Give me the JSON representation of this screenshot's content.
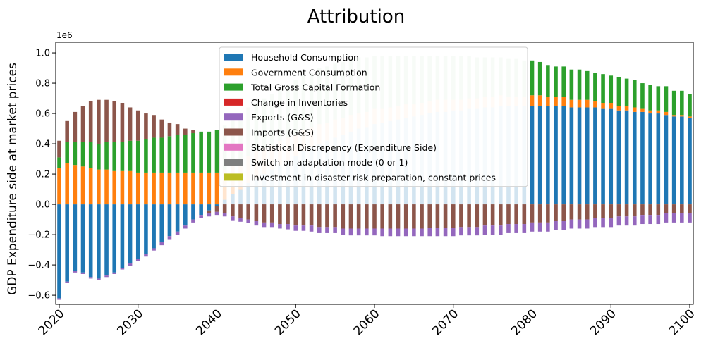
{
  "chart_data": {
    "type": "bar",
    "stacked": true,
    "title": "Attribution",
    "ylabel": "GDP Expenditure side at market prices",
    "xlabel": "",
    "y_offset_label": "1e6",
    "ylim": [
      -0.66,
      1.07
    ],
    "yticks": [
      -0.6,
      -0.4,
      -0.2,
      0.0,
      0.2,
      0.4,
      0.6,
      0.8,
      1.0
    ],
    "ytick_labels": [
      "−0.6",
      "−0.4",
      "−0.2",
      "0.0",
      "0.2",
      "0.4",
      "0.6",
      "0.8",
      "1.0"
    ],
    "xticks": [
      2020,
      2030,
      2040,
      2050,
      2060,
      2070,
      2080,
      2090,
      2100
    ],
    "xtick_labels": [
      "2020",
      "2030",
      "2040",
      "2050",
      "2060",
      "2070",
      "2080",
      "2090",
      "2100"
    ],
    "xtick_rotation": 45,
    "x_start": 2020,
    "x_end": 2100,
    "faded_range": [
      2041,
      2079
    ],
    "legend_placement": "upper-center",
    "grid": false,
    "legend": [
      {
        "name": "Household Consumption",
        "color": "#1f77b4"
      },
      {
        "name": "Government Consumption",
        "color": "#ff7f0e"
      },
      {
        "name": "Total Gross Capital Formation",
        "color": "#2ca02c"
      },
      {
        "name": "Change in Inventories",
        "color": "#d62728"
      },
      {
        "name": "Exports (G&S)",
        "color": "#9467bd"
      },
      {
        "name": "Imports (G&S)",
        "color": "#8c564b"
      },
      {
        "name": "Statistical Discrepency (Expenditure Side)",
        "color": "#e377c2"
      },
      {
        "name": "Switch on adaptation mode (0 or 1)",
        "color": "#7f7f7f"
      },
      {
        "name": "Investment in disaster risk preparation, constant prices",
        "color": "#bcbd22"
      }
    ],
    "bars": [
      {
        "year": 2020,
        "hh": -0.62,
        "gov": 0.24,
        "gcf": 0.07,
        "exp": -0.01,
        "imp": 0.11
      },
      {
        "year": 2021,
        "hh": -0.51,
        "gov": 0.27,
        "gcf": 0.14,
        "exp": -0.01,
        "imp": 0.14
      },
      {
        "year": 2022,
        "hh": -0.44,
        "gov": 0.26,
        "gcf": 0.15,
        "exp": -0.01,
        "imp": 0.2
      },
      {
        "year": 2023,
        "hh": -0.45,
        "gov": 0.25,
        "gcf": 0.16,
        "exp": -0.01,
        "imp": 0.24
      },
      {
        "year": 2024,
        "hh": -0.48,
        "gov": 0.24,
        "gcf": 0.17,
        "exp": -0.01,
        "imp": 0.27
      },
      {
        "year": 2025,
        "hh": -0.49,
        "gov": 0.23,
        "gcf": 0.17,
        "exp": -0.01,
        "imp": 0.29
      },
      {
        "year": 2026,
        "hh": -0.47,
        "gov": 0.23,
        "gcf": 0.18,
        "exp": -0.01,
        "imp": 0.28
      },
      {
        "year": 2027,
        "hh": -0.45,
        "gov": 0.22,
        "gcf": 0.19,
        "exp": -0.01,
        "imp": 0.27
      },
      {
        "year": 2028,
        "hh": -0.42,
        "gov": 0.22,
        "gcf": 0.19,
        "exp": -0.01,
        "imp": 0.26
      },
      {
        "year": 2029,
        "hh": -0.39,
        "gov": 0.22,
        "gcf": 0.2,
        "exp": -0.015,
        "imp": 0.22
      },
      {
        "year": 2030,
        "hh": -0.36,
        "gov": 0.21,
        "gcf": 0.21,
        "exp": -0.015,
        "imp": 0.2
      },
      {
        "year": 2031,
        "hh": -0.33,
        "gov": 0.21,
        "gcf": 0.22,
        "exp": -0.015,
        "imp": 0.17
      },
      {
        "year": 2032,
        "hh": -0.29,
        "gov": 0.21,
        "gcf": 0.23,
        "exp": -0.015,
        "imp": 0.15
      },
      {
        "year": 2033,
        "hh": -0.25,
        "gov": 0.21,
        "gcf": 0.23,
        "exp": -0.02,
        "imp": 0.12
      },
      {
        "year": 2034,
        "hh": -0.21,
        "gov": 0.21,
        "gcf": 0.24,
        "exp": -0.02,
        "imp": 0.09
      },
      {
        "year": 2035,
        "hh": -0.18,
        "gov": 0.21,
        "gcf": 0.25,
        "exp": -0.02,
        "imp": 0.07
      },
      {
        "year": 2036,
        "hh": -0.14,
        "gov": 0.21,
        "gcf": 0.25,
        "exp": -0.02,
        "imp": 0.04
      },
      {
        "year": 2037,
        "hh": -0.1,
        "gov": 0.21,
        "gcf": 0.26,
        "exp": -0.02,
        "imp": 0.02
      },
      {
        "year": 2038,
        "hh": -0.07,
        "gov": 0.21,
        "gcf": 0.27,
        "exp": -0.02,
        "imp": 0.0
      },
      {
        "year": 2039,
        "hh": -0.04,
        "gov": 0.21,
        "gcf": 0.27,
        "exp": -0.02,
        "imp": -0.02
      },
      {
        "year": 2040,
        "hh": -0.01,
        "gov": 0.21,
        "gcf": 0.28,
        "exp": -0.02,
        "imp": -0.04
      },
      {
        "year": 2041,
        "hh": 0.03,
        "gov": 0.2,
        "gcf": 0.29,
        "exp": -0.02,
        "imp": -0.06
      },
      {
        "year": 2042,
        "hh": 0.07,
        "gov": 0.2,
        "gcf": 0.3,
        "exp": -0.025,
        "imp": -0.08
      },
      {
        "year": 2043,
        "hh": 0.1,
        "gov": 0.19,
        "gcf": 0.31,
        "exp": -0.025,
        "imp": -0.09
      },
      {
        "year": 2044,
        "hh": 0.14,
        "gov": 0.18,
        "gcf": 0.32,
        "exp": -0.025,
        "imp": -0.1
      },
      {
        "year": 2045,
        "hh": 0.17,
        "gov": 0.18,
        "gcf": 0.32,
        "exp": -0.03,
        "imp": -0.11
      },
      {
        "year": 2046,
        "hh": 0.2,
        "gov": 0.17,
        "gcf": 0.33,
        "exp": -0.03,
        "imp": -0.12
      },
      {
        "year": 2047,
        "hh": 0.23,
        "gov": 0.16,
        "gcf": 0.34,
        "exp": -0.03,
        "imp": -0.12
      },
      {
        "year": 2048,
        "hh": 0.26,
        "gov": 0.16,
        "gcf": 0.34,
        "exp": -0.03,
        "imp": -0.13
      },
      {
        "year": 2049,
        "hh": 0.29,
        "gov": 0.15,
        "gcf": 0.35,
        "exp": -0.035,
        "imp": -0.13
      },
      {
        "year": 2050,
        "hh": 0.32,
        "gov": 0.14,
        "gcf": 0.36,
        "exp": -0.035,
        "imp": -0.14
      },
      {
        "year": 2051,
        "hh": 0.35,
        "gov": 0.14,
        "gcf": 0.36,
        "exp": -0.035,
        "imp": -0.14
      },
      {
        "year": 2052,
        "hh": 0.38,
        "gov": 0.13,
        "gcf": 0.36,
        "exp": -0.04,
        "imp": -0.14
      },
      {
        "year": 2053,
        "hh": 0.4,
        "gov": 0.13,
        "gcf": 0.37,
        "exp": -0.04,
        "imp": -0.15
      },
      {
        "year": 2054,
        "hh": 0.42,
        "gov": 0.12,
        "gcf": 0.37,
        "exp": -0.04,
        "imp": -0.15
      },
      {
        "year": 2055,
        "hh": 0.44,
        "gov": 0.12,
        "gcf": 0.37,
        "exp": -0.04,
        "imp": -0.15
      },
      {
        "year": 2056,
        "hh": 0.46,
        "gov": 0.11,
        "gcf": 0.37,
        "exp": -0.04,
        "imp": -0.16
      },
      {
        "year": 2057,
        "hh": 0.48,
        "gov": 0.11,
        "gcf": 0.37,
        "exp": -0.045,
        "imp": -0.16
      },
      {
        "year": 2058,
        "hh": 0.5,
        "gov": 0.1,
        "gcf": 0.37,
        "exp": -0.045,
        "imp": -0.16
      },
      {
        "year": 2059,
        "hh": 0.51,
        "gov": 0.1,
        "gcf": 0.36,
        "exp": -0.045,
        "imp": -0.16
      },
      {
        "year": 2060,
        "hh": 0.53,
        "gov": 0.1,
        "gcf": 0.35,
        "exp": -0.045,
        "imp": -0.16
      },
      {
        "year": 2061,
        "hh": 0.54,
        "gov": 0.09,
        "gcf": 0.35,
        "exp": -0.05,
        "imp": -0.16
      },
      {
        "year": 2062,
        "hh": 0.55,
        "gov": 0.09,
        "gcf": 0.34,
        "exp": -0.05,
        "imp": -0.16
      },
      {
        "year": 2063,
        "hh": 0.56,
        "gov": 0.09,
        "gcf": 0.33,
        "exp": -0.05,
        "imp": -0.16
      },
      {
        "year": 2064,
        "hh": 0.57,
        "gov": 0.09,
        "gcf": 0.32,
        "exp": -0.05,
        "imp": -0.16
      },
      {
        "year": 2065,
        "hh": 0.58,
        "gov": 0.08,
        "gcf": 0.32,
        "exp": -0.05,
        "imp": -0.16
      },
      {
        "year": 2066,
        "hh": 0.59,
        "gov": 0.08,
        "gcf": 0.31,
        "exp": -0.05,
        "imp": -0.16
      },
      {
        "year": 2067,
        "hh": 0.6,
        "gov": 0.08,
        "gcf": 0.3,
        "exp": -0.055,
        "imp": -0.155
      },
      {
        "year": 2068,
        "hh": 0.61,
        "gov": 0.08,
        "gcf": 0.29,
        "exp": -0.055,
        "imp": -0.155
      },
      {
        "year": 2069,
        "hh": 0.61,
        "gov": 0.08,
        "gcf": 0.29,
        "exp": -0.055,
        "imp": -0.155
      },
      {
        "year": 2070,
        "hh": 0.62,
        "gov": 0.07,
        "gcf": 0.29,
        "exp": -0.055,
        "imp": -0.155
      },
      {
        "year": 2071,
        "hh": 0.62,
        "gov": 0.07,
        "gcf": 0.29,
        "exp": -0.055,
        "imp": -0.15
      },
      {
        "year": 2072,
        "hh": 0.63,
        "gov": 0.07,
        "gcf": 0.28,
        "exp": -0.055,
        "imp": -0.15
      },
      {
        "year": 2073,
        "hh": 0.63,
        "gov": 0.07,
        "gcf": 0.27,
        "exp": -0.055,
        "imp": -0.15
      },
      {
        "year": 2074,
        "hh": 0.64,
        "gov": 0.07,
        "gcf": 0.26,
        "exp": -0.06,
        "imp": -0.14
      },
      {
        "year": 2075,
        "hh": 0.64,
        "gov": 0.07,
        "gcf": 0.26,
        "exp": -0.06,
        "imp": -0.14
      },
      {
        "year": 2076,
        "hh": 0.65,
        "gov": 0.07,
        "gcf": 0.25,
        "exp": -0.06,
        "imp": -0.14
      },
      {
        "year": 2077,
        "hh": 0.65,
        "gov": 0.06,
        "gcf": 0.25,
        "exp": -0.06,
        "imp": -0.13
      },
      {
        "year": 2078,
        "hh": 0.65,
        "gov": 0.06,
        "gcf": 0.25,
        "exp": -0.06,
        "imp": -0.13
      },
      {
        "year": 2079,
        "hh": 0.65,
        "gov": 0.06,
        "gcf": 0.24,
        "exp": -0.06,
        "imp": -0.13
      },
      {
        "year": 2080,
        "hh": 0.65,
        "gov": 0.07,
        "gcf": 0.23,
        "exp": -0.06,
        "imp": -0.12
      },
      {
        "year": 2081,
        "hh": 0.65,
        "gov": 0.07,
        "gcf": 0.22,
        "exp": -0.06,
        "imp": -0.12
      },
      {
        "year": 2082,
        "hh": 0.65,
        "gov": 0.06,
        "gcf": 0.21,
        "exp": -0.06,
        "imp": -0.12
      },
      {
        "year": 2083,
        "hh": 0.65,
        "gov": 0.06,
        "gcf": 0.2,
        "exp": -0.06,
        "imp": -0.11
      },
      {
        "year": 2084,
        "hh": 0.65,
        "gov": 0.06,
        "gcf": 0.2,
        "exp": -0.06,
        "imp": -0.11
      },
      {
        "year": 2085,
        "hh": 0.64,
        "gov": 0.05,
        "gcf": 0.2,
        "exp": -0.06,
        "imp": -0.1
      },
      {
        "year": 2086,
        "hh": 0.64,
        "gov": 0.05,
        "gcf": 0.2,
        "exp": -0.06,
        "imp": -0.1
      },
      {
        "year": 2087,
        "hh": 0.64,
        "gov": 0.05,
        "gcf": 0.19,
        "exp": -0.06,
        "imp": -0.1
      },
      {
        "year": 2088,
        "hh": 0.64,
        "gov": 0.04,
        "gcf": 0.19,
        "exp": -0.06,
        "imp": -0.09
      },
      {
        "year": 2089,
        "hh": 0.63,
        "gov": 0.04,
        "gcf": 0.19,
        "exp": -0.06,
        "imp": -0.09
      },
      {
        "year": 2090,
        "hh": 0.63,
        "gov": 0.04,
        "gcf": 0.18,
        "exp": -0.06,
        "imp": -0.09
      },
      {
        "year": 2091,
        "hh": 0.62,
        "gov": 0.03,
        "gcf": 0.19,
        "exp": -0.06,
        "imp": -0.08
      },
      {
        "year": 2092,
        "hh": 0.62,
        "gov": 0.03,
        "gcf": 0.18,
        "exp": -0.06,
        "imp": -0.08
      },
      {
        "year": 2093,
        "hh": 0.61,
        "gov": 0.03,
        "gcf": 0.18,
        "exp": -0.06,
        "imp": -0.08
      },
      {
        "year": 2094,
        "hh": 0.61,
        "gov": 0.02,
        "gcf": 0.17,
        "exp": -0.06,
        "imp": -0.07
      },
      {
        "year": 2095,
        "hh": 0.6,
        "gov": 0.02,
        "gcf": 0.17,
        "exp": -0.06,
        "imp": -0.07
      },
      {
        "year": 2096,
        "hh": 0.6,
        "gov": 0.02,
        "gcf": 0.16,
        "exp": -0.06,
        "imp": -0.07
      },
      {
        "year": 2097,
        "hh": 0.59,
        "gov": 0.02,
        "gcf": 0.17,
        "exp": -0.06,
        "imp": -0.06
      },
      {
        "year": 2098,
        "hh": 0.58,
        "gov": 0.01,
        "gcf": 0.16,
        "exp": -0.06,
        "imp": -0.06
      },
      {
        "year": 2099,
        "hh": 0.58,
        "gov": 0.01,
        "gcf": 0.16,
        "exp": -0.06,
        "imp": -0.06
      },
      {
        "year": 2100,
        "hh": 0.57,
        "gov": 0.01,
        "gcf": 0.15,
        "exp": -0.06,
        "imp": -0.06
      }
    ]
  }
}
